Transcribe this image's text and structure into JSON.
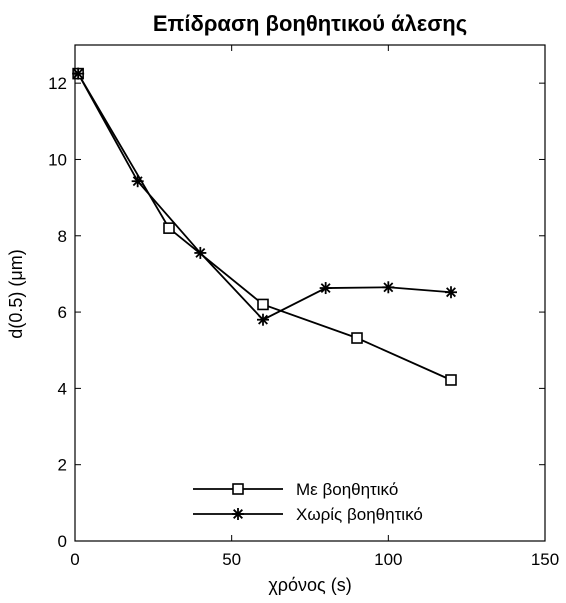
{
  "chart_data": {
    "type": "line",
    "title": "Επίδραση βοηθητικού άλεσης",
    "xlabel": "χρόνος (s)",
    "ylabel": "d(0.5) (μm)",
    "xlim": [
      0,
      150
    ],
    "ylim": [
      0,
      13
    ],
    "xticks": [
      0,
      50,
      100,
      150
    ],
    "yticks": [
      0,
      2,
      4,
      6,
      8,
      10,
      12
    ],
    "xtick_labels": [
      "0",
      "50",
      "100",
      "150"
    ],
    "ytick_labels": [
      "0",
      "2",
      "4",
      "6",
      "8",
      "10",
      "12"
    ],
    "grid": false,
    "legend_position": "bottom-center",
    "series": [
      {
        "name": "Με βοηθητικό",
        "marker": "square",
        "color": "#000000",
        "x": [
          1,
          30,
          60,
          90,
          120
        ],
        "y": [
          12.25,
          8.2,
          6.2,
          5.32,
          4.22
        ]
      },
      {
        "name": "Χωρίς βοηθητικό",
        "marker": "asterisk",
        "color": "#000000",
        "x": [
          1,
          20,
          40,
          60,
          80,
          100,
          120
        ],
        "y": [
          12.25,
          9.43,
          7.55,
          5.8,
          6.63,
          6.65,
          6.52
        ]
      }
    ]
  }
}
